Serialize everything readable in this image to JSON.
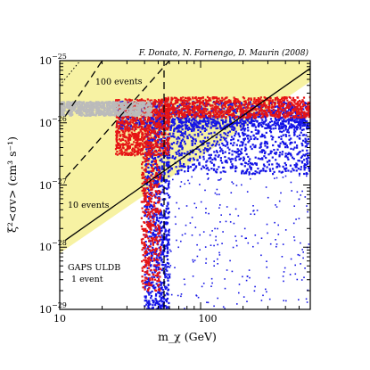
{
  "chart_data": {
    "type": "scatter",
    "title": "F. Donato, N. Fornengo, D. Maurin (2008)",
    "xlabel": "m_χ (GeV)",
    "ylabel": "ξ²<σv> (cm³ s⁻¹)",
    "xscale": "log",
    "yscale": "log",
    "xlim": [
      10,
      600
    ],
    "ylim": [
      1e-29,
      1e-25
    ],
    "x_ticks": [
      {
        "value": 10,
        "label": "10"
      },
      {
        "value": 100,
        "label": "100"
      }
    ],
    "y_ticks": [
      {
        "value": 1e-29,
        "base": "10",
        "exp": "−29"
      },
      {
        "value": 1e-28,
        "base": "10",
        "exp": "−28"
      },
      {
        "value": 1e-27,
        "base": "10",
        "exp": "−27"
      },
      {
        "value": 1e-26,
        "base": "10",
        "exp": "−26"
      },
      {
        "value": 1e-25,
        "base": "10",
        "exp": "−25"
      }
    ],
    "annotations": [
      {
        "text": "100 events"
      },
      {
        "text": "10 events"
      },
      {
        "text": "GAPS ULDB"
      },
      {
        "text": "1 event"
      }
    ],
    "sensitivity_lines": [
      {
        "label": "1 event",
        "style": "solid",
        "points": [
          [
            11,
            1.3e-28
          ],
          [
            600,
            7.5e-26
          ]
        ]
      },
      {
        "label": "10 events",
        "style": "dashed",
        "points": [
          [
            11,
            1.3e-27
          ],
          [
            60,
            1e-25
          ]
        ]
      },
      {
        "label": "100 events",
        "style": "dashed",
        "points": [
          [
            11,
            1.3e-26
          ],
          [
            20,
            1e-25
          ]
        ]
      },
      {
        "label": "",
        "style": "dotted",
        "points": [
          [
            10,
            4e-26
          ],
          [
            14,
            1e-25
          ]
        ]
      },
      {
        "label": "",
        "style": "dashed",
        "points": [
          [
            55,
            1e-29
          ],
          [
            55,
            1e-25
          ]
        ]
      }
    ],
    "excluded_region": {
      "color": "#f7f2a3",
      "boundary": [
        [
          10,
          1e-25
        ],
        [
          10,
          8e-29
        ],
        [
          600,
          4.6e-26
        ],
        [
          600,
          1e-25
        ]
      ]
    },
    "series": [
      {
        "name": "",
        "color": "#1414e6",
        "description": "density",
        "regions": [
          {
            "x": [
              40,
              60
            ],
            "y": [
              1e-29,
              1.5e-26
            ],
            "density": "high"
          },
          {
            "x": [
              60,
              600
            ],
            "y": [
              1.5e-27,
              1.4e-26
            ],
            "density": "high"
          },
          {
            "x": [
              25,
              600
            ],
            "y": [
              8e-27,
              2.2e-26
            ],
            "density": "high"
          },
          {
            "x": [
              60,
              600
            ],
            "y": [
              1e-29,
              1.5e-27
            ],
            "density": "sparse"
          }
        ]
      },
      {
        "name": "",
        "color": "#e61414",
        "description": "density",
        "regions": [
          {
            "x": [
              55,
              600
            ],
            "y": [
              1.2e-26,
              2.6e-26
            ],
            "density": "high"
          },
          {
            "x": [
              25,
              60
            ],
            "y": [
              3e-27,
              2.4e-26
            ],
            "density": "high"
          },
          {
            "x": [
              38,
              52
            ],
            "y": [
              2e-29,
              3e-27
            ],
            "density": "medium"
          }
        ]
      },
      {
        "name": "",
        "color": "#bbbbbb",
        "description": "density",
        "regions": [
          {
            "x": [
              10,
              45
            ],
            "y": [
              1.3e-26,
              2.2e-26
            ],
            "density": "high"
          }
        ]
      }
    ]
  }
}
